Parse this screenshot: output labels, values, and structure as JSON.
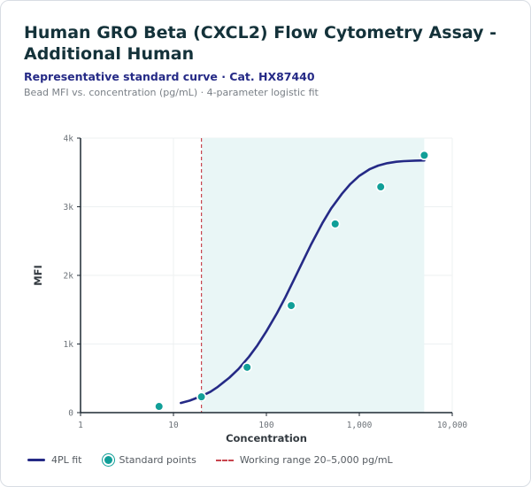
{
  "title": "Human GRO Beta (CXCL2) Flow Cytometry Assay -Additional Human",
  "subtitle": "Representative standard curve · Cat. HX87440",
  "caption": "Bead MFI vs. concentration (pg/mL) · 4-parameter logistic fit",
  "colors": {
    "curve": "#252a86",
    "points": "#119f98",
    "range_line": "#c8454e",
    "range_fill": "#e9f6f6"
  },
  "chart_data": {
    "type": "scatter",
    "xlabel": "Concentration",
    "ylabel": "MFI",
    "x_scale": "log",
    "xlim": [
      1,
      10000
    ],
    "ylim": [
      0,
      4000
    ],
    "x_ticks": [
      1,
      10,
      100,
      1000,
      10000
    ],
    "x_tick_labels": [
      "1",
      "10",
      "100",
      "1,000",
      "10,000"
    ],
    "y_ticks": [
      0,
      1000,
      2000,
      3000,
      4000
    ],
    "y_tick_labels": [
      "0",
      "1k",
      "2k",
      "3k",
      "4k"
    ],
    "grid": true,
    "working_range": [
      20,
      5000
    ],
    "series": [
      {
        "name": "4PL fit",
        "kind": "line",
        "x": [
          12,
          15,
          20,
          25,
          30,
          40,
          50,
          65,
          80,
          100,
          130,
          160,
          200,
          250,
          300,
          400,
          500,
          650,
          800,
          1000,
          1300,
          1600,
          2000,
          2500,
          3000,
          4000,
          5000
        ],
        "y": [
          140,
          175,
          240,
          305,
          375,
          510,
          635,
          815,
          980,
          1185,
          1450,
          1680,
          1950,
          2220,
          2440,
          2760,
          2980,
          3190,
          3330,
          3450,
          3550,
          3600,
          3635,
          3655,
          3665,
          3672,
          3675
        ]
      },
      {
        "name": "Standard points",
        "kind": "scatter",
        "x": [
          7,
          20,
          62,
          185,
          550,
          1700,
          5000
        ],
        "y": [
          90,
          230,
          660,
          1560,
          2750,
          3290,
          3750
        ]
      }
    ],
    "legend": [
      "4PL fit",
      "Standard points",
      "Working range 20–5,000 pg/mL"
    ],
    "legend_position": "bottom"
  }
}
